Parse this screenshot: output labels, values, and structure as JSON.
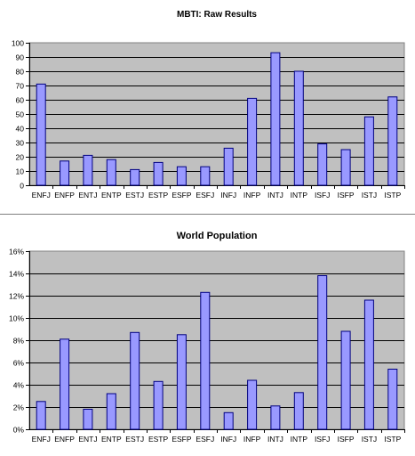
{
  "chart_data": [
    {
      "type": "bar",
      "title": "MBTI: Raw Results",
      "xlabel": "",
      "ylabel": "",
      "categories": [
        "ENFJ",
        "ENFP",
        "ENTJ",
        "ENTP",
        "ESTJ",
        "ESTP",
        "ESFP",
        "ESFJ",
        "INFJ",
        "INFP",
        "INTJ",
        "INTP",
        "ISFJ",
        "ISFP",
        "ISTJ",
        "ISTP"
      ],
      "values": [
        71,
        17,
        21,
        18,
        11,
        16,
        13,
        13,
        26,
        61,
        93,
        80,
        29,
        25,
        48,
        62
      ],
      "ylim": [
        0,
        100
      ],
      "yticks": [
        0,
        10,
        20,
        30,
        40,
        50,
        60,
        70,
        80,
        90,
        100
      ],
      "ytick_labels": [
        "0",
        "10",
        "20",
        "30",
        "40",
        "50",
        "60",
        "70",
        "80",
        "90",
        "100"
      ],
      "grid": true,
      "legend": "none",
      "colors": {
        "bar": "#9999ff",
        "bar_edge": "#000080",
        "plot_bg": "#c0c0c0",
        "grid": "#000000"
      }
    },
    {
      "type": "bar",
      "title": "World Population",
      "xlabel": "",
      "ylabel": "",
      "categories": [
        "ENFJ",
        "ENFP",
        "ENTJ",
        "ENTP",
        "ESTJ",
        "ESTP",
        "ESFP",
        "ESFJ",
        "INFJ",
        "INFP",
        "INTJ",
        "INTP",
        "ISFJ",
        "ISFP",
        "ISTJ",
        "ISTP"
      ],
      "values": [
        2.5,
        8.1,
        1.8,
        3.2,
        8.7,
        4.3,
        8.5,
        12.3,
        1.5,
        4.4,
        2.1,
        3.3,
        13.8,
        8.8,
        11.6,
        5.4
      ],
      "ylim": [
        0,
        16
      ],
      "yticks": [
        0,
        2,
        4,
        6,
        8,
        10,
        12,
        14,
        16
      ],
      "ytick_labels": [
        "0%",
        "2%",
        "4%",
        "6%",
        "8%",
        "10%",
        "12%",
        "14%",
        "16%"
      ],
      "grid": true,
      "legend": "none",
      "colors": {
        "bar": "#9999ff",
        "bar_edge": "#000080",
        "plot_bg": "#c0c0c0",
        "grid": "#000000"
      }
    }
  ]
}
